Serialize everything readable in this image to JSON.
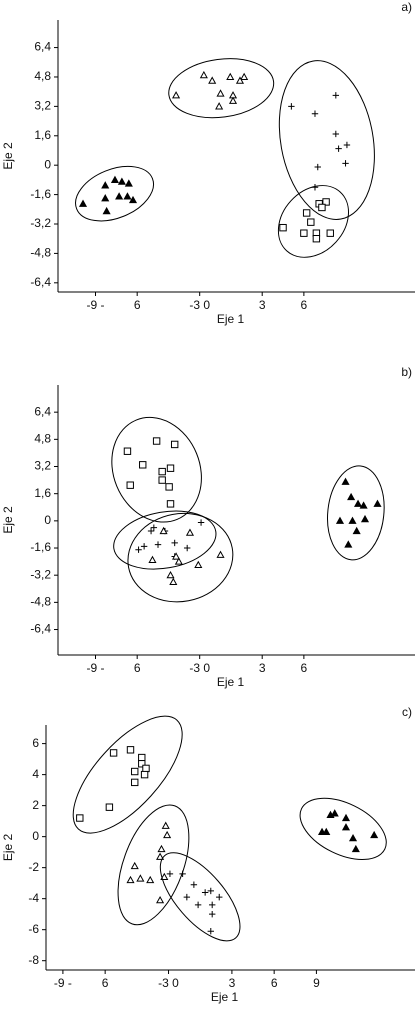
{
  "chart_data": [
    {
      "type": "scatter",
      "panel_label": "a)",
      "x_label": "Eje 1",
      "y_label": "Eje 2",
      "xlim": [
        -11.7,
        14
      ],
      "ylim": [
        -6.9,
        7.9
      ],
      "xticks": [
        {
          "value": -9,
          "label": "-9 -"
        },
        {
          "value": -6,
          "label": "6"
        },
        {
          "value": -1.5,
          "label": "-3 0"
        },
        3,
        6
      ],
      "yticks": [
        {
          "value": 6.4,
          "label": "6,4"
        },
        {
          "value": 4.8,
          "label": "4,8"
        },
        {
          "value": 3.2,
          "label": "3,2"
        },
        {
          "value": 1.6,
          "label": "1,6"
        },
        0,
        {
          "value": -1.6,
          "label": "-1,6"
        },
        {
          "value": -3.2,
          "label": "-3,2"
        },
        {
          "value": -4.8,
          "label": "-4,8"
        },
        {
          "value": -6.4,
          "label": "-6,4"
        }
      ],
      "series": [
        {
          "marker": "triangle-filled",
          "color": "#000000",
          "x": [
            -9.9,
            -8.3,
            -7.6,
            -7.1,
            -6.6,
            -8.3,
            -7.3,
            -6.7,
            -8.2,
            -6.3
          ],
          "values": [
            -2.1,
            -1.1,
            -0.8,
            -0.9,
            -1.0,
            -1.8,
            -1.7,
            -1.7,
            -2.5,
            -1.9
          ]
        },
        {
          "marker": "triangle-open",
          "color": "#000000",
          "x": [
            -3.2,
            -1.2,
            -0.6,
            0.7,
            1.7,
            0,
            0.9,
            0.9,
            -0.1,
            1.4
          ],
          "values": [
            3.8,
            4.9,
            4.6,
            4.8,
            4.8,
            3.9,
            3.8,
            3.5,
            3.2,
            4.6
          ]
        },
        {
          "marker": "plus",
          "color": "#000000",
          "x": [
            5.1,
            6.8,
            8.3,
            8.3,
            8.5,
            9.1,
            9.0,
            7.0,
            6.8
          ],
          "values": [
            3.2,
            2.8,
            3.8,
            1.7,
            0.9,
            1.1,
            0.1,
            -0.1,
            -1.2
          ]
        },
        {
          "marker": "square-open",
          "color": "#000000",
          "x": [
            4.5,
            6.2,
            6.5,
            7.1,
            7.6,
            7.3,
            6.0,
            6.9,
            6.9,
            7.9
          ],
          "values": [
            -3.4,
            -2.6,
            -3.1,
            -2.1,
            -2.0,
            -2.3,
            -3.7,
            -3.7,
            -4.0,
            -3.7
          ]
        }
      ]
    },
    {
      "type": "scatter",
      "panel_label": "b)",
      "x_label": "Eje 1",
      "y_label": "Eje 2",
      "xlim": [
        -11.7,
        14
      ],
      "ylim": [
        -7.9,
        8.0
      ],
      "xticks": [
        {
          "value": -9,
          "label": "-9 -"
        },
        {
          "value": -6,
          "label": "6"
        },
        {
          "value": -1.5,
          "label": "-3 0"
        },
        3,
        6
      ],
      "yticks": [
        {
          "value": 6.4,
          "label": "6,4"
        },
        {
          "value": 4.8,
          "label": "4,8"
        },
        {
          "value": 3.2,
          "label": "3,2"
        },
        {
          "value": 1.6,
          "label": "1,6"
        },
        0,
        {
          "value": -1.6,
          "label": "-1,6"
        },
        {
          "value": -3.2,
          "label": "-3,2"
        },
        {
          "value": -4.8,
          "label": "-4,8"
        },
        {
          "value": -6.4,
          "label": "-6,4"
        }
      ],
      "series": [
        {
          "marker": "square-open",
          "color": "#000000",
          "x": [
            -6.7,
            -4.6,
            -3.3,
            -5.6,
            -4.2,
            -3.6,
            -4.2,
            -3.7,
            -6.5,
            -3.6
          ],
          "values": [
            4.1,
            4.7,
            4.5,
            3.3,
            2.9,
            3.1,
            2.4,
            2.0,
            2.1,
            1.0
          ]
        },
        {
          "marker": "plus",
          "color": "#000000",
          "x": [
            -5.9,
            -5.0,
            -4.8,
            -4.0,
            -5.5,
            -4.5,
            -3.3,
            -2.4,
            -1.4,
            -3.3
          ],
          "values": [
            -1.7,
            -0.6,
            -0.4,
            -0.6,
            -1.5,
            -1.4,
            -1.3,
            -1.6,
            -0.1,
            -2.1
          ]
        },
        {
          "marker": "triangle-open",
          "color": "#000000",
          "x": [
            -4.9,
            -4.1,
            -3.2,
            -3.0,
            -2.2,
            -1.6,
            0,
            -3.6,
            -3.4
          ],
          "values": [
            -2.3,
            -0.6,
            -2.1,
            -2.4,
            -0.7,
            -2.6,
            -2.0,
            -3.2,
            -3.6
          ]
        },
        {
          "marker": "triangle-filled",
          "color": "#000000",
          "x": [
            9.0,
            9.4,
            9.9,
            10.3,
            11.3,
            8.6,
            9.5,
            10.4,
            9.2,
            9.8
          ],
          "values": [
            2.3,
            1.4,
            1.0,
            0.9,
            1.0,
            0,
            0,
            0.1,
            -1.4,
            -0.6
          ]
        }
      ]
    },
    {
      "type": "scatter",
      "panel_label": "c)",
      "x_label": "Eje 1",
      "y_label": "Eje 2",
      "xlim": [
        -10.2,
        16
      ],
      "ylim": [
        -8.6,
        7.2
      ],
      "xticks": [
        {
          "value": -9,
          "label": "-9 -"
        },
        {
          "value": -6,
          "label": "6"
        },
        {
          "value": -1.5,
          "label": "-3 0"
        },
        3,
        6,
        9
      ],
      "yticks": [
        6,
        4,
        2,
        0,
        -2,
        -4,
        -6,
        -8
      ],
      "series": [
        {
          "marker": "square-open",
          "color": "#000000",
          "x": [
            -7.8,
            -5.7,
            -5.4,
            -4.2,
            -3.4,
            -3.4,
            -3.9,
            -3.1,
            -3.9,
            -3.2
          ],
          "values": [
            1.2,
            1.9,
            5.4,
            5.6,
            5.1,
            4.7,
            4.2,
            4.4,
            3.5,
            4.0
          ]
        },
        {
          "marker": "triangle-open",
          "color": "#000000",
          "x": [
            -3.9,
            -3.5,
            -2.8,
            -2.1,
            -2.0,
            -1.7,
            -1.6,
            -4.2,
            -2.1,
            -1.8
          ],
          "values": [
            -1.9,
            -2.7,
            -2.8,
            -1.3,
            -0.8,
            0.7,
            0.1,
            -2.8,
            -4.1,
            -2.6
          ]
        },
        {
          "marker": "plus",
          "color": "#000000",
          "x": [
            -1.4,
            -0.5,
            0.3,
            -0.2,
            1.1,
            1.5,
            0.6,
            1.6,
            1.6,
            1.5,
            2.1
          ],
          "values": [
            -2.4,
            -2.4,
            -3.1,
            -3.9,
            -3.6,
            -3.5,
            -4.4,
            -4.4,
            -5.0,
            -6.1,
            -3.9
          ]
        },
        {
          "marker": "triangle-filled",
          "color": "#000000",
          "x": [
            9.4,
            9.7,
            10.0,
            10.3,
            11.1,
            11.1,
            11.6,
            11.8,
            13.1
          ],
          "values": [
            0.3,
            0.3,
            1.4,
            1.5,
            1.2,
            0.6,
            -0.1,
            -0.8,
            0.1
          ]
        }
      ]
    }
  ]
}
